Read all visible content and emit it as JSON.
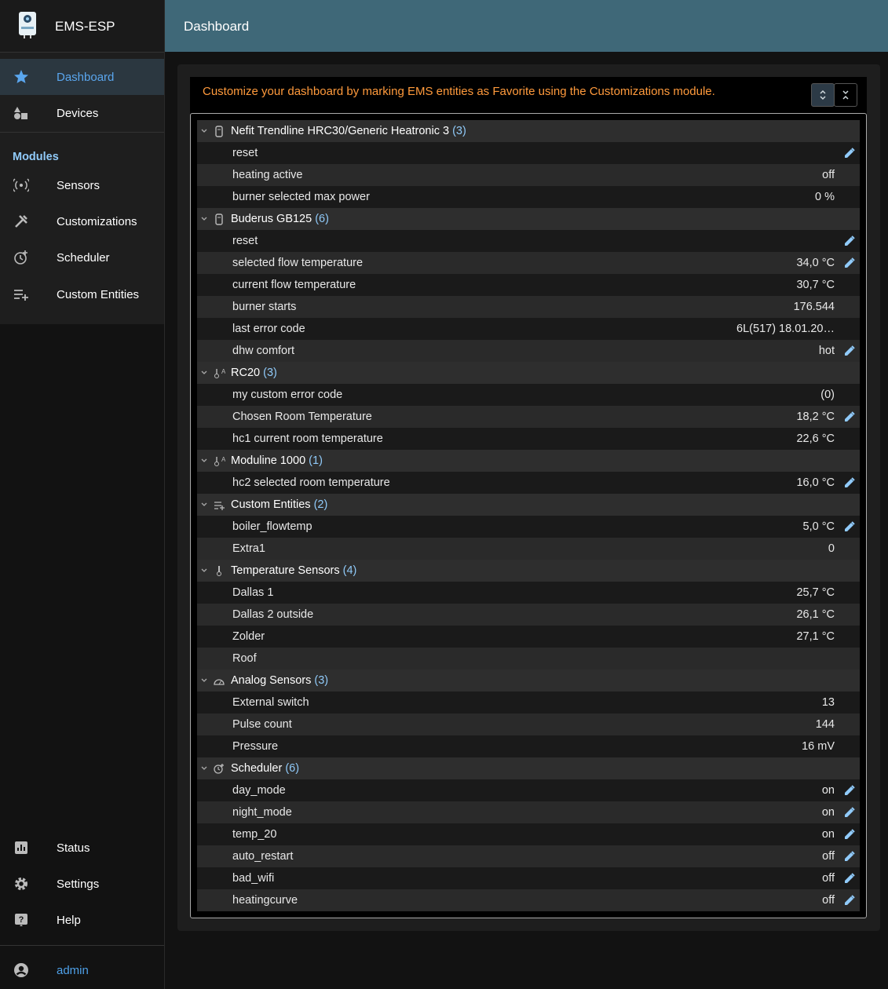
{
  "sidebar": {
    "app_name": "EMS-ESP",
    "nav": [
      "Dashboard",
      "Devices"
    ],
    "modules_title": "Modules",
    "modules": [
      "Sensors",
      "Customizations",
      "Scheduler",
      "Custom Entities"
    ],
    "bottom": [
      "Status",
      "Settings",
      "Help"
    ],
    "user": "admin"
  },
  "header": {
    "title": "Dashboard"
  },
  "dashboard": {
    "message": "Customize your dashboard by marking EMS entities as Favorite using the Customizations module.",
    "groups": [
      {
        "name": "Nefit Trendline HRC30/Generic Heatronic 3",
        "count": "(3)",
        "rows": [
          {
            "name": "reset",
            "editable": true
          },
          {
            "name": "heating active",
            "value": "off"
          },
          {
            "name": "burner selected max power",
            "value": "0 %"
          }
        ]
      },
      {
        "name": "Buderus GB125",
        "count": "(6)",
        "rows": [
          {
            "name": "reset",
            "editable": true
          },
          {
            "name": "selected flow temperature",
            "value": "34,0 °C",
            "editable": true
          },
          {
            "name": "current flow temperature",
            "value": "30,7 °C"
          },
          {
            "name": "burner starts",
            "value": "176.544"
          },
          {
            "name": "last error code",
            "value": "6L(517) 18.01.20…"
          },
          {
            "name": "dhw comfort",
            "value": "hot",
            "editable": true
          }
        ]
      },
      {
        "name": "RC20",
        "count": "(3)",
        "rows": [
          {
            "name": "my custom error code",
            "value": "(0)"
          },
          {
            "name": "Chosen Room Temperature",
            "value": "18,2 °C",
            "editable": true
          },
          {
            "name": "hc1 current room temperature",
            "value": "22,6 °C"
          }
        ]
      },
      {
        "name": "Moduline 1000",
        "count": "(1)",
        "rows": [
          {
            "name": "hc2 selected room temperature",
            "value": "16,0 °C",
            "editable": true
          }
        ]
      },
      {
        "name": "Custom Entities",
        "count": "(2)",
        "rows": [
          {
            "name": "boiler_flowtemp",
            "value": "5,0 °C",
            "editable": true
          },
          {
            "name": "Extra1",
            "value": "0"
          }
        ]
      },
      {
        "name": "Temperature Sensors",
        "count": "(4)",
        "rows": [
          {
            "name": "Dallas 1",
            "value": "25,7 °C"
          },
          {
            "name": "Dallas 2 outside",
            "value": "26,1 °C"
          },
          {
            "name": "Zolder",
            "value": "27,1 °C"
          },
          {
            "name": "Roof"
          }
        ]
      },
      {
        "name": "Analog Sensors",
        "count": "(3)",
        "rows": [
          {
            "name": "External switch",
            "value": "13"
          },
          {
            "name": "Pulse count",
            "value": "144"
          },
          {
            "name": "Pressure",
            "value": "16 mV"
          }
        ]
      },
      {
        "name": "Scheduler",
        "count": "(6)",
        "rows": [
          {
            "name": "day_mode",
            "value": "on",
            "editable": true
          },
          {
            "name": "night_mode",
            "value": "on",
            "editable": true
          },
          {
            "name": "temp_20",
            "value": "on",
            "editable": true
          },
          {
            "name": "auto_restart",
            "value": "off",
            "editable": true
          },
          {
            "name": "bad_wifi",
            "value": "off",
            "editable": true
          },
          {
            "name": "heatingcurve",
            "value": "off",
            "editable": true
          }
        ]
      }
    ]
  }
}
